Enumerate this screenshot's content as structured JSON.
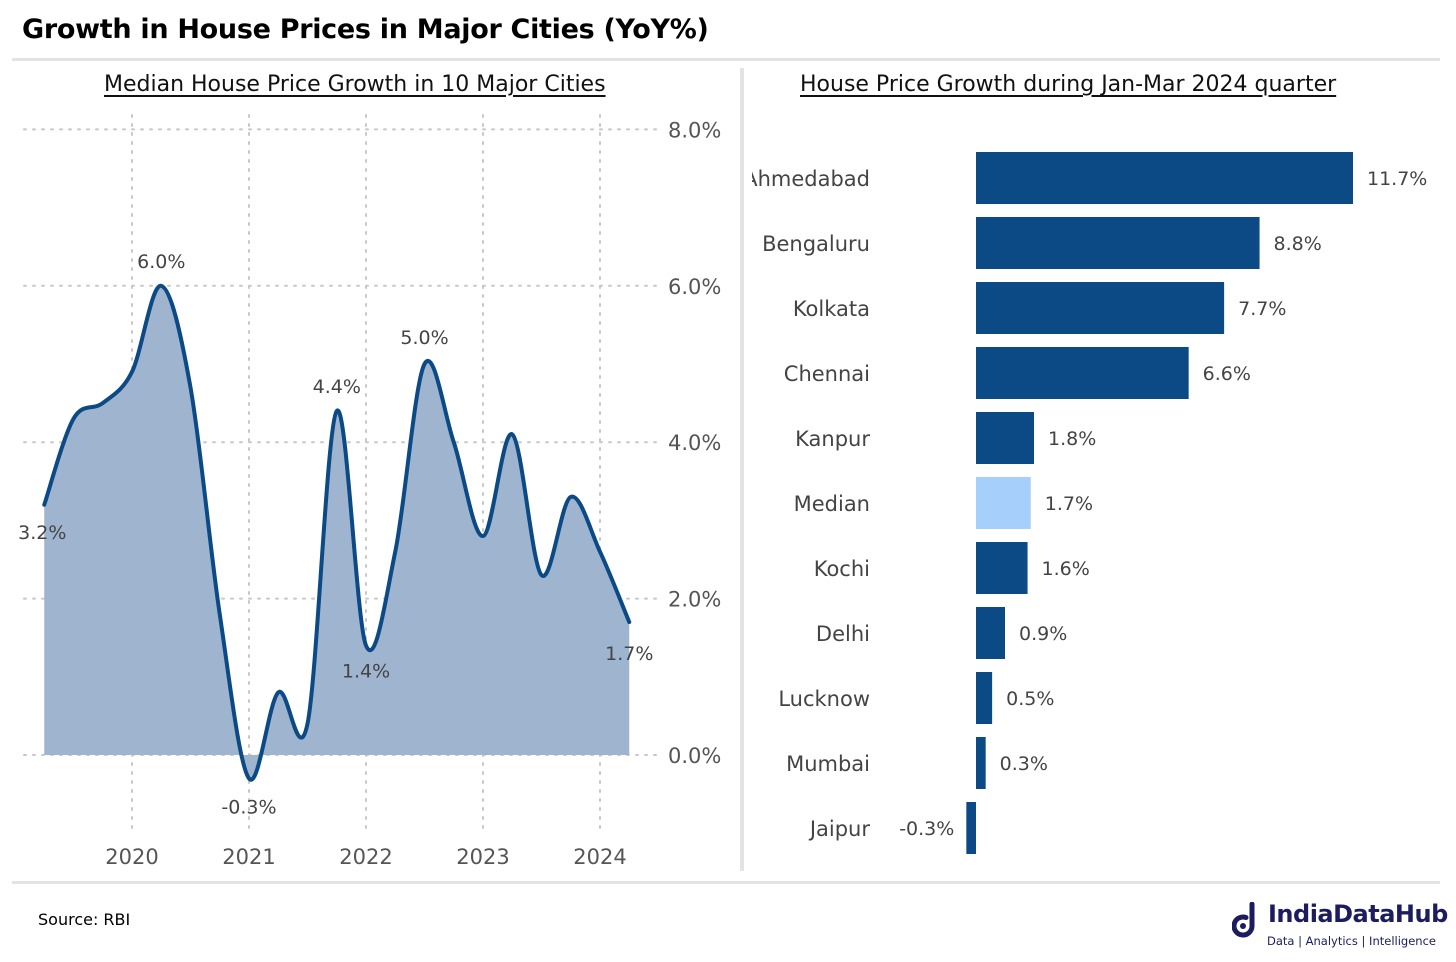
{
  "header": {
    "title": "Growth in House Prices in Major Cities (YoY%)"
  },
  "footer": {
    "source": "Source: RBI"
  },
  "logo": {
    "name": "IndiaDataHub",
    "tagline": "Data | Analytics | Intelligence",
    "icon": "indiadatahub-logo-icon"
  },
  "colors": {
    "series": "#0b4a85",
    "area": "#9fb4cf",
    "bar": "#0b4a85",
    "highlight": "#a6d0fb",
    "grid": "#c8c8c8"
  },
  "chart_data": [
    {
      "type": "area",
      "title": "Median House Price Growth in 10 Major Cities",
      "xlabel": "",
      "ylabel": "",
      "x_ticks": [
        "2020",
        "2021",
        "2022",
        "2023",
        "2024"
      ],
      "y_ticks": [
        "8.0%",
        "6.0%",
        "4.0%",
        "2.0%",
        "0.0%"
      ],
      "ylim": [
        -0.9,
        8.0
      ],
      "grid": true,
      "y_axis_side": "right",
      "x": [
        "2019-04",
        "2019-07",
        "2019-10",
        "2020-01",
        "2020-04",
        "2020-07",
        "2020-10",
        "2021-01",
        "2021-04",
        "2021-07",
        "2021-10",
        "2022-01",
        "2022-04",
        "2022-07",
        "2022-10",
        "2023-01",
        "2023-04",
        "2023-07",
        "2023-10",
        "2024-01",
        "2024-04"
      ],
      "values": [
        3.2,
        4.3,
        4.5,
        4.9,
        6.0,
        4.7,
        1.8,
        -0.3,
        0.8,
        0.4,
        4.4,
        1.4,
        2.6,
        5.0,
        4.0,
        2.8,
        4.1,
        2.3,
        3.3,
        2.6,
        1.7
      ],
      "data_labels": [
        {
          "x": "2019-04",
          "text": "3.2%"
        },
        {
          "x": "2020-04",
          "text": "6.0%"
        },
        {
          "x": "2021-01",
          "text": "-0.3%"
        },
        {
          "x": "2021-10",
          "text": "4.4%"
        },
        {
          "x": "2022-01",
          "text": "1.4%"
        },
        {
          "x": "2022-07",
          "text": "5.0%"
        },
        {
          "x": "2024-04",
          "text": "1.7%"
        }
      ]
    },
    {
      "type": "bar",
      "orientation": "horizontal",
      "title": "House Price Growth during Jan-Mar 2024 quarter",
      "categories": [
        "Ahmedabad",
        "Bengaluru",
        "Kolkata",
        "Chennai",
        "Kanpur",
        "Median",
        "Kochi",
        "Delhi",
        "Lucknow",
        "Mumbai",
        "Jaipur"
      ],
      "values": [
        11.7,
        8.8,
        7.7,
        6.6,
        1.8,
        1.7,
        1.6,
        0.9,
        0.5,
        0.3,
        -0.3
      ],
      "labels": [
        "11.7%",
        "8.8%",
        "7.7%",
        "6.6%",
        "1.8%",
        "1.7%",
        "1.6%",
        "0.9%",
        "0.5%",
        "0.3%",
        "-0.3%"
      ],
      "highlight": "Median"
    }
  ]
}
